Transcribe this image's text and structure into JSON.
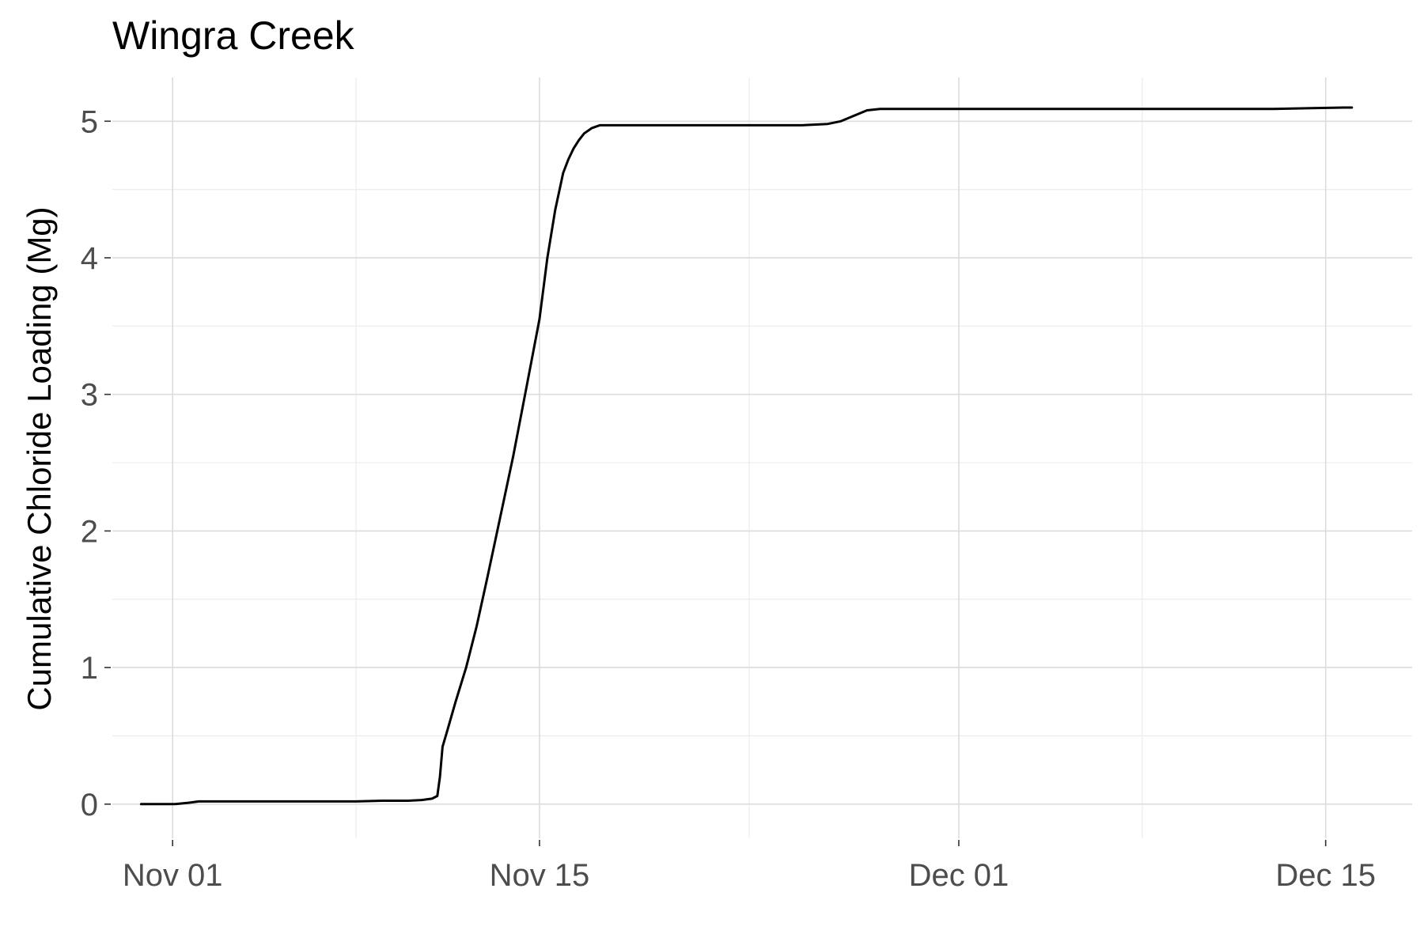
{
  "chart_data": {
    "type": "line",
    "title": "Wingra Creek",
    "xlabel": "",
    "ylabel": "Cumulative Chloride Loading (Mg)",
    "x_type": "date",
    "x_unit": "days since Nov 01",
    "xlim": [
      -2.3,
      47.3
    ],
    "ylim": [
      -0.25,
      5.32
    ],
    "x_ticks": [
      {
        "value": 0,
        "label": "Nov 01"
      },
      {
        "value": 14,
        "label": "Nov 15"
      },
      {
        "value": 30,
        "label": "Dec 01"
      },
      {
        "value": 44,
        "label": "Dec 15"
      }
    ],
    "x_minor_ticks": [
      7,
      22,
      37
    ],
    "y_ticks": [
      {
        "value": 0,
        "label": "0"
      },
      {
        "value": 1,
        "label": "1"
      },
      {
        "value": 2,
        "label": "2"
      },
      {
        "value": 3,
        "label": "3"
      },
      {
        "value": 4,
        "label": "4"
      },
      {
        "value": 5,
        "label": "5"
      }
    ],
    "y_minor_ticks": [
      0.5,
      1.5,
      2.5,
      3.5,
      4.5
    ],
    "grid": true,
    "legend": "none",
    "series": [
      {
        "name": "Wingra Creek",
        "color": "#000000",
        "x": [
          -1.2,
          0.1,
          0.6,
          1.0,
          3.0,
          5.0,
          7.0,
          8.0,
          9.0,
          9.5,
          9.9,
          10.1,
          10.2,
          10.3,
          10.5,
          10.8,
          11.2,
          11.6,
          12.0,
          12.5,
          13.0,
          13.5,
          14.0,
          14.3,
          14.6,
          14.9,
          15.1,
          15.3,
          15.5,
          15.7,
          16.0,
          16.3,
          16.7,
          17.0,
          17.5,
          18.0,
          20.0,
          22.0,
          24.0,
          25.0,
          25.5,
          26.0,
          26.5,
          27.0,
          28.0,
          30.0,
          35.0,
          40.0,
          42.0,
          45.0,
          44.7
        ],
        "values": [
          0.0,
          0.0,
          0.01,
          0.02,
          0.02,
          0.02,
          0.02,
          0.025,
          0.025,
          0.03,
          0.04,
          0.06,
          0.2,
          0.42,
          0.55,
          0.75,
          1.0,
          1.3,
          1.65,
          2.1,
          2.55,
          3.05,
          3.55,
          4.0,
          4.35,
          4.62,
          4.72,
          4.8,
          4.86,
          4.91,
          4.95,
          4.97,
          4.97,
          4.97,
          4.97,
          4.97,
          4.97,
          4.97,
          4.97,
          4.98,
          5.0,
          5.04,
          5.08,
          5.09,
          5.09,
          5.09,
          5.09,
          5.09,
          5.09,
          5.1,
          5.1
        ]
      }
    ]
  }
}
